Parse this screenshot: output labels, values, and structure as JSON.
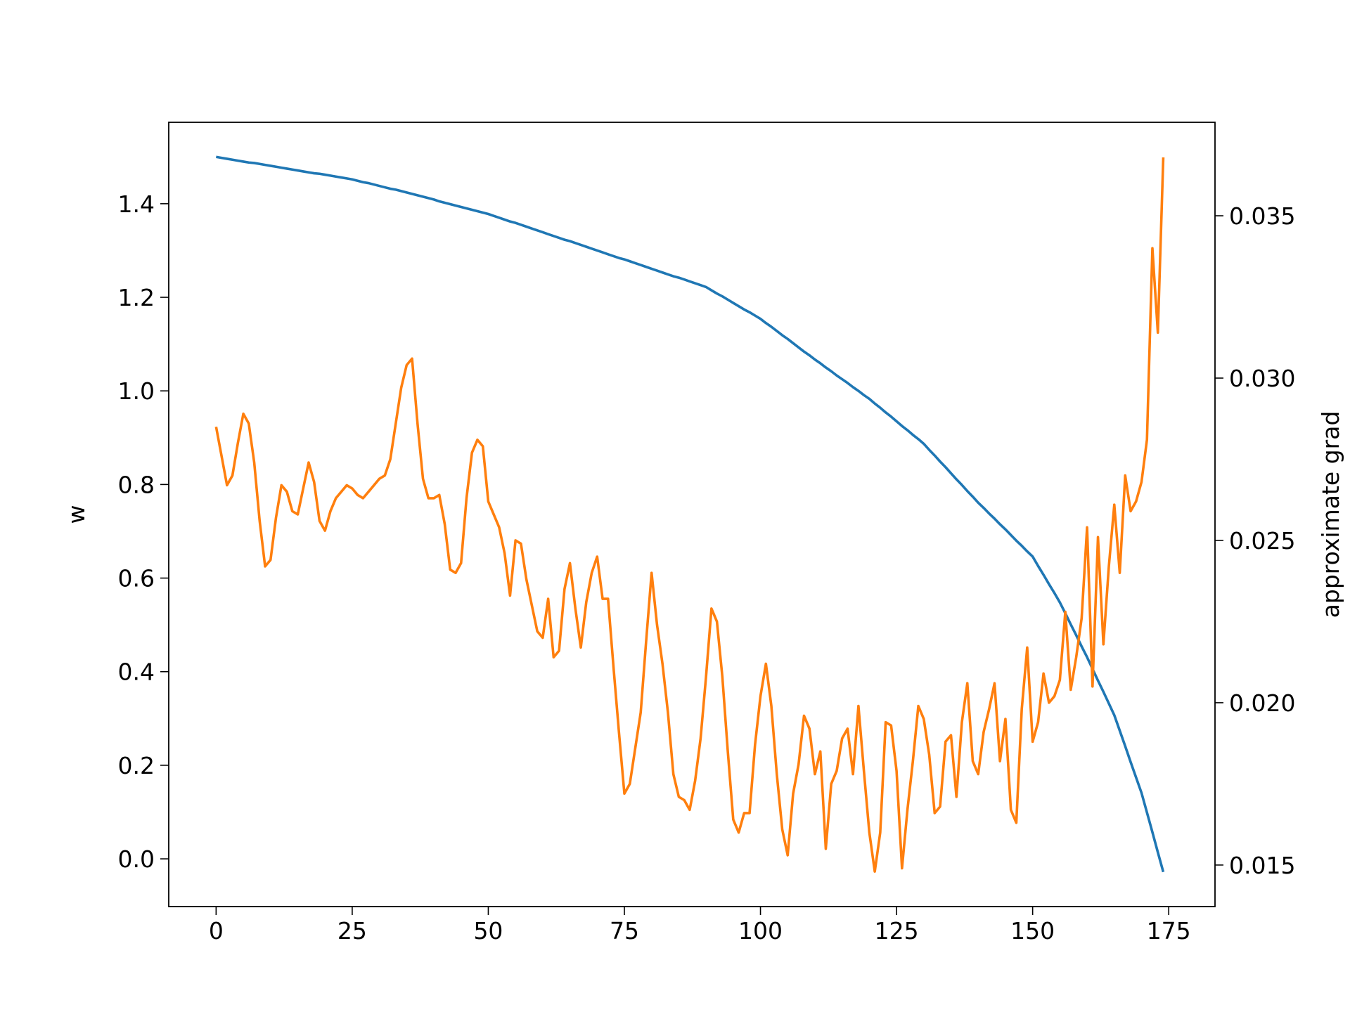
{
  "chart_data": {
    "type": "line",
    "ylabel": "w",
    "y2label": "approximate grad",
    "x": [
      0,
      1,
      2,
      3,
      4,
      5,
      6,
      7,
      8,
      9,
      10,
      11,
      12,
      13,
      14,
      15,
      16,
      17,
      18,
      19,
      20,
      21,
      22,
      23,
      24,
      25,
      26,
      27,
      28,
      29,
      30,
      31,
      32,
      33,
      34,
      35,
      36,
      37,
      38,
      39,
      40,
      41,
      42,
      43,
      44,
      45,
      46,
      47,
      48,
      49,
      50,
      51,
      52,
      53,
      54,
      55,
      56,
      57,
      58,
      59,
      60,
      61,
      62,
      63,
      64,
      65,
      66,
      67,
      68,
      69,
      70,
      71,
      72,
      73,
      74,
      75,
      76,
      77,
      78,
      79,
      80,
      81,
      82,
      83,
      84,
      85,
      86,
      87,
      88,
      89,
      90,
      91,
      92,
      93,
      94,
      95,
      96,
      97,
      98,
      99,
      100,
      101,
      102,
      103,
      104,
      105,
      106,
      107,
      108,
      109,
      110,
      111,
      112,
      113,
      114,
      115,
      116,
      117,
      118,
      119,
      120,
      121,
      122,
      123,
      124,
      125,
      126,
      127,
      128,
      129,
      130,
      131,
      132,
      133,
      134,
      135,
      136,
      137,
      138,
      139,
      140,
      141,
      142,
      143,
      144,
      145,
      146,
      147,
      148,
      149,
      150,
      151,
      152,
      153,
      154,
      155,
      156,
      157,
      158,
      159,
      160,
      161,
      162,
      163,
      164,
      165,
      166,
      167,
      168,
      169,
      170,
      171,
      172,
      173,
      174
    ],
    "series": [
      {
        "color": "#1f77b4",
        "values": [
          1.5,
          1.498,
          1.496,
          1.494,
          1.492,
          1.49,
          1.488,
          1.487,
          1.485,
          1.483,
          1.481,
          1.479,
          1.477,
          1.475,
          1.473,
          1.471,
          1.469,
          1.467,
          1.465,
          1.464,
          1.462,
          1.46,
          1.458,
          1.456,
          1.454,
          1.452,
          1.449,
          1.446,
          1.444,
          1.441,
          1.438,
          1.435,
          1.432,
          1.43,
          1.427,
          1.424,
          1.421,
          1.418,
          1.415,
          1.412,
          1.409,
          1.405,
          1.402,
          1.399,
          1.396,
          1.393,
          1.39,
          1.387,
          1.384,
          1.381,
          1.378,
          1.374,
          1.37,
          1.366,
          1.362,
          1.359,
          1.355,
          1.351,
          1.347,
          1.343,
          1.339,
          1.335,
          1.331,
          1.327,
          1.323,
          1.32,
          1.316,
          1.312,
          1.308,
          1.304,
          1.3,
          1.296,
          1.292,
          1.288,
          1.284,
          1.281,
          1.277,
          1.273,
          1.269,
          1.265,
          1.261,
          1.257,
          1.253,
          1.249,
          1.245,
          1.242,
          1.238,
          1.234,
          1.23,
          1.226,
          1.222,
          1.215,
          1.208,
          1.202,
          1.195,
          1.188,
          1.181,
          1.174,
          1.168,
          1.161,
          1.154,
          1.145,
          1.137,
          1.128,
          1.119,
          1.111,
          1.102,
          1.093,
          1.084,
          1.076,
          1.067,
          1.059,
          1.05,
          1.042,
          1.033,
          1.025,
          1.017,
          1.008,
          1.0,
          0.991,
          0.983,
          0.973,
          0.964,
          0.954,
          0.945,
          0.935,
          0.925,
          0.916,
          0.906,
          0.897,
          0.887,
          0.874,
          0.862,
          0.849,
          0.837,
          0.824,
          0.811,
          0.799,
          0.786,
          0.774,
          0.761,
          0.75,
          0.738,
          0.727,
          0.715,
          0.704,
          0.692,
          0.68,
          0.669,
          0.657,
          0.646,
          0.626,
          0.607,
          0.587,
          0.568,
          0.548,
          0.525,
          0.501,
          0.478,
          0.454,
          0.431,
          0.406,
          0.381,
          0.357,
          0.332,
          0.307,
          0.274,
          0.241,
          0.207,
          0.174,
          0.141,
          0.099,
          0.057,
          0.014,
          -0.028
        ]
      },
      {
        "color": "#ff7f0e",
        "axis": "y2",
        "values": [
          0.0285,
          0.0276,
          0.0267,
          0.027,
          0.028,
          0.0289,
          0.0286,
          0.0274,
          0.0256,
          0.0242,
          0.0244,
          0.0257,
          0.0267,
          0.0265,
          0.0259,
          0.0258,
          0.0266,
          0.0274,
          0.0268,
          0.0256,
          0.0253,
          0.0259,
          0.0263,
          0.0265,
          0.0267,
          0.0266,
          0.0264,
          0.0263,
          0.0265,
          0.0267,
          0.0269,
          0.027,
          0.0275,
          0.0286,
          0.0297,
          0.0304,
          0.0306,
          0.0286,
          0.0269,
          0.0263,
          0.0263,
          0.0264,
          0.0255,
          0.0241,
          0.024,
          0.0243,
          0.0263,
          0.0277,
          0.0281,
          0.0279,
          0.0262,
          0.0258,
          0.0254,
          0.0246,
          0.0233,
          0.025,
          0.0249,
          0.0238,
          0.023,
          0.0222,
          0.022,
          0.0232,
          0.0214,
          0.0216,
          0.0235,
          0.0243,
          0.0229,
          0.0217,
          0.0231,
          0.024,
          0.0245,
          0.0232,
          0.0232,
          0.0211,
          0.0191,
          0.0172,
          0.0175,
          0.0186,
          0.0197,
          0.0219,
          0.024,
          0.0224,
          0.0212,
          0.0197,
          0.0178,
          0.0171,
          0.017,
          0.0167,
          0.0176,
          0.0189,
          0.0208,
          0.0229,
          0.0225,
          0.0208,
          0.0185,
          0.0164,
          0.016,
          0.0166,
          0.0166,
          0.0187,
          0.0202,
          0.0212,
          0.0199,
          0.0178,
          0.0161,
          0.0153,
          0.0172,
          0.0181,
          0.0196,
          0.0192,
          0.0178,
          0.0185,
          0.0155,
          0.0175,
          0.0179,
          0.0189,
          0.0192,
          0.0178,
          0.0199,
          0.0179,
          0.016,
          0.0148,
          0.016,
          0.0194,
          0.0193,
          0.0179,
          0.0149,
          0.0167,
          0.0182,
          0.0199,
          0.0195,
          0.0184,
          0.0166,
          0.0168,
          0.0188,
          0.019,
          0.0171,
          0.0194,
          0.0206,
          0.0182,
          0.0178,
          0.0191,
          0.0198,
          0.0206,
          0.0182,
          0.0195,
          0.0167,
          0.0163,
          0.0198,
          0.0217,
          0.0188,
          0.0194,
          0.0209,
          0.02,
          0.0202,
          0.0207,
          0.0228,
          0.0204,
          0.0214,
          0.0226,
          0.0254,
          0.0205,
          0.0251,
          0.0218,
          0.0242,
          0.0261,
          0.024,
          0.027,
          0.0259,
          0.0262,
          0.0268,
          0.0281,
          0.034,
          0.0314,
          0.0368
        ]
      }
    ],
    "xlim": [
      -8.7,
      183.5
    ],
    "xticks": [
      0,
      25,
      50,
      75,
      100,
      125,
      150,
      175
    ],
    "ylim": [
      -0.102,
      1.574
    ],
    "yticks": [
      {
        "value": 0,
        "label": "0.0"
      },
      0.2,
      0.4,
      0.6,
      0.8,
      {
        "value": 1,
        "label": "1.0"
      },
      1.2,
      1.4
    ],
    "y2lim": [
      0.01372,
      0.03788
    ],
    "y2ticks": [
      0.015,
      {
        "value": 0.02,
        "label": "0.020"
      },
      0.025,
      {
        "value": 0.03,
        "label": "0.030"
      },
      0.035
    ]
  }
}
